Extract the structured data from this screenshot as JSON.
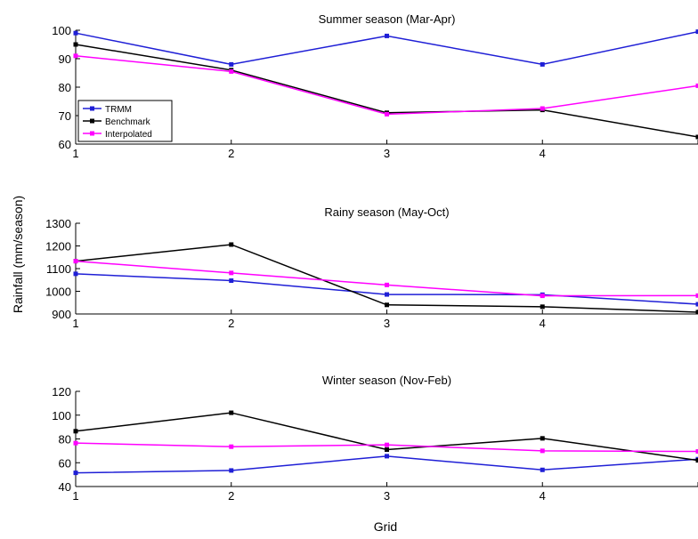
{
  "figure": {
    "ylabel": "Rainfall (mm/season)",
    "xlabel": "Grid"
  },
  "legend": {
    "entries": [
      "TRMM",
      "Benchmark",
      "Interpolated"
    ]
  },
  "colors": {
    "TRMM": "#1f1fd6",
    "Benchmark": "#000000",
    "Interpolated": "#ff00ff"
  },
  "chart_data": [
    {
      "type": "line",
      "title": "Summer season (Mar-Apr)",
      "xlabel": "",
      "ylabel": "",
      "x": [
        1,
        2,
        3,
        4,
        5
      ],
      "xlim": [
        1,
        5
      ],
      "ylim": [
        60,
        100
      ],
      "yticks": [
        60,
        70,
        80,
        90,
        100
      ],
      "series": [
        {
          "name": "TRMM",
          "values": [
            99,
            88,
            98,
            88,
            99.5
          ]
        },
        {
          "name": "Benchmark",
          "values": [
            95,
            86,
            71,
            72,
            62.5
          ]
        },
        {
          "name": "Interpolated",
          "values": [
            91,
            85.5,
            70.5,
            72.5,
            80.5
          ]
        }
      ],
      "legend": "lower-left"
    },
    {
      "type": "line",
      "title": "Rainy season (May-Oct)",
      "xlabel": "",
      "ylabel": "",
      "x": [
        1,
        2,
        3,
        4,
        5
      ],
      "xlim": [
        1,
        5
      ],
      "ylim": [
        900,
        1300
      ],
      "yticks": [
        900,
        1000,
        1100,
        1200,
        1300
      ],
      "series": [
        {
          "name": "TRMM",
          "values": [
            1077,
            1047,
            986,
            985,
            943
          ]
        },
        {
          "name": "Benchmark",
          "values": [
            1133,
            1206,
            940,
            932,
            908
          ]
        },
        {
          "name": "Interpolated",
          "values": [
            1133,
            1081,
            1028,
            980,
            981
          ]
        }
      ]
    },
    {
      "type": "line",
      "title": "Winter season (Nov-Feb)",
      "xlabel": "",
      "ylabel": "",
      "x": [
        1,
        2,
        3,
        4,
        5
      ],
      "xlim": [
        1,
        5
      ],
      "ylim": [
        40,
        120
      ],
      "yticks": [
        40,
        60,
        80,
        100,
        120
      ],
      "series": [
        {
          "name": "TRMM",
          "values": [
            51.5,
            53.5,
            65.5,
            54,
            63
          ]
        },
        {
          "name": "Benchmark",
          "values": [
            86.5,
            102,
            71,
            80.5,
            62
          ]
        },
        {
          "name": "Interpolated",
          "values": [
            76.5,
            73.5,
            75,
            70,
            69.5
          ]
        }
      ]
    }
  ]
}
